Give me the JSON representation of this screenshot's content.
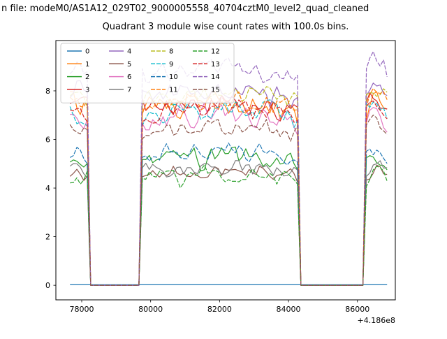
{
  "figure": {
    "suptitle": "n file: modeM0/AS1A12_029T02_9000005558_40704cztM0_level2_quad_cleaned",
    "title": "Quadrant 3 module wise count rates with 100.0s bins.",
    "background": "#ffffff"
  },
  "chart_data": {
    "type": "line",
    "title": "Quadrant 3 module wise count rates with 100.0s bins.",
    "xlabel": "",
    "ylabel": "",
    "x_offset_label": "+4.186e8",
    "xlim": [
      77250,
      87100
    ],
    "ylim": [
      -0.6,
      10.07
    ],
    "xticks": [
      78000,
      80000,
      82000,
      84000,
      86000
    ],
    "yticks": [
      0,
      2,
      4,
      6,
      8
    ],
    "bin_seconds": 100.0,
    "x_start": 77660,
    "x_end": 86890,
    "time_segments": [
      [
        77660,
        78230
      ],
      [
        79690,
        84310
      ],
      [
        86180,
        86890
      ]
    ],
    "legend_columns": 4,
    "legend_position": "upper-left",
    "grid": false,
    "series": [
      {
        "label": "0",
        "color": "#1f77b4",
        "dash": false,
        "mean": 0.02,
        "amp": 0.0,
        "always_on": true
      },
      {
        "label": "1",
        "color": "#ff7f0e",
        "dash": false,
        "mean": 7.2,
        "amp": 0.45
      },
      {
        "label": "2",
        "color": "#2ca02c",
        "dash": false,
        "mean": 5.0,
        "amp": 0.35
      },
      {
        "label": "3",
        "color": "#d62728",
        "dash": false,
        "mean": 7.1,
        "amp": 0.45
      },
      {
        "label": "4",
        "color": "#9467bd",
        "dash": false,
        "mean": 7.6,
        "amp": 0.4
      },
      {
        "label": "5",
        "color": "#8c564b",
        "dash": false,
        "mean": 4.5,
        "amp": 0.25
      },
      {
        "label": "6",
        "color": "#e377c2",
        "dash": false,
        "mean": 6.7,
        "amp": 0.4
      },
      {
        "label": "7",
        "color": "#7f7f7f",
        "dash": false,
        "mean": 4.7,
        "amp": 0.3
      },
      {
        "label": "8",
        "color": "#bcbd22",
        "dash": true,
        "mean": 7.5,
        "amp": 0.35
      },
      {
        "label": "9",
        "color": "#17becf",
        "dash": true,
        "mean": 6.9,
        "amp": 0.35
      },
      {
        "label": "10",
        "color": "#1f77b4",
        "dash": true,
        "mean": 5.3,
        "amp": 0.3
      },
      {
        "label": "11",
        "color": "#ff7f0e",
        "dash": true,
        "mean": 7.3,
        "amp": 0.35
      },
      {
        "label": "12",
        "color": "#2ca02c",
        "dash": true,
        "mean": 4.3,
        "amp": 0.3
      },
      {
        "label": "13",
        "color": "#d62728",
        "dash": true,
        "mean": 7.0,
        "amp": 0.35
      },
      {
        "label": "14",
        "color": "#9467bd",
        "dash": true,
        "mean": 8.5,
        "amp": 0.35
      },
      {
        "label": "15",
        "color": "#8c564b",
        "dash": true,
        "mean": 6.2,
        "amp": 0.3
      }
    ]
  }
}
